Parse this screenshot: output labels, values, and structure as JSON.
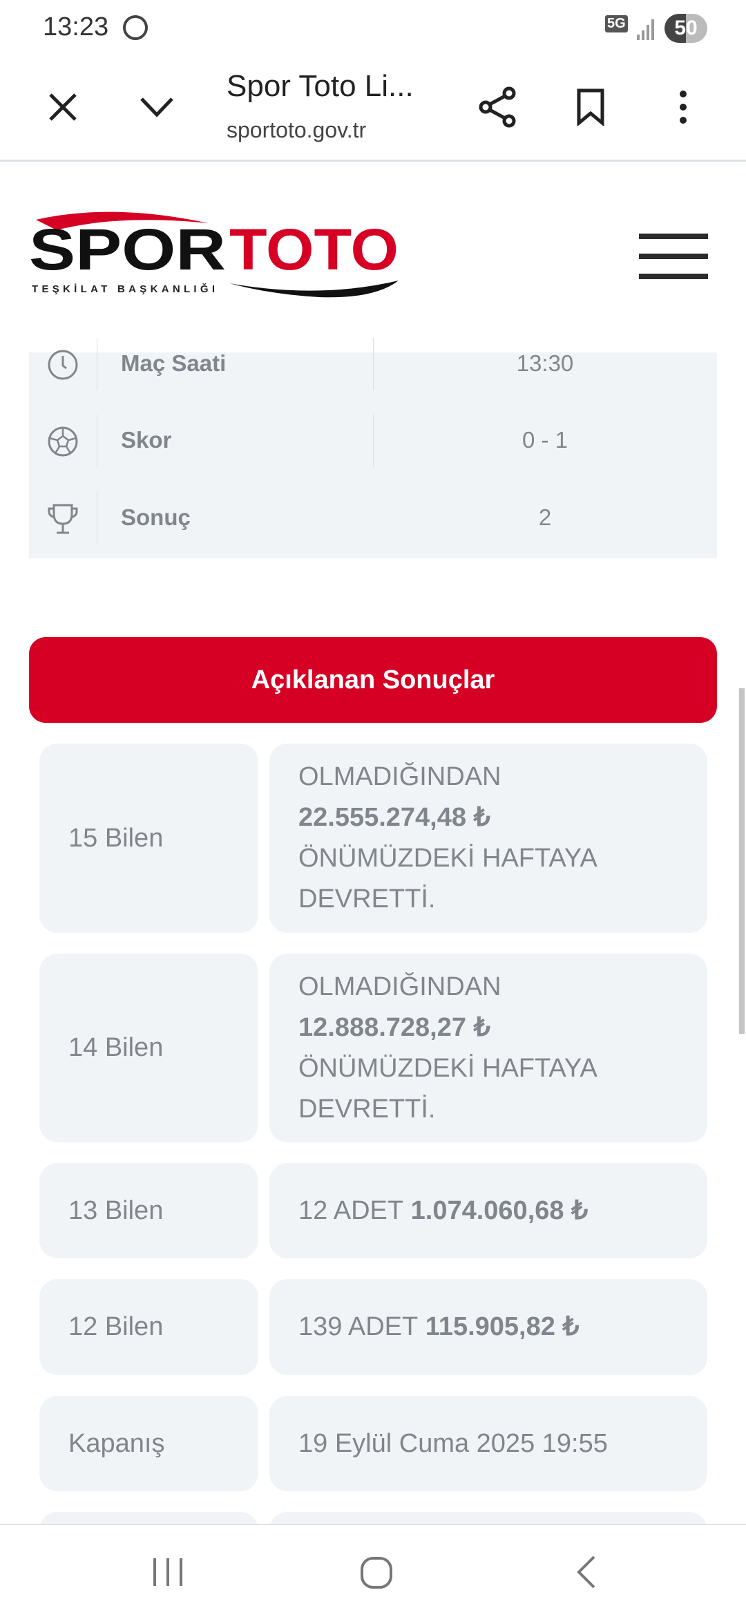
{
  "status_bar": {
    "time": "13:23",
    "network": "5G",
    "battery": "50",
    "icons": [
      "whatsapp-icon",
      "signal-icon",
      "battery-icon"
    ]
  },
  "browser": {
    "title": "Spor Toto Li...",
    "url": "sportoto.gov.tr",
    "icons": [
      "close-icon",
      "chevron-down-icon",
      "share-icon",
      "bookmark-icon",
      "more-vert-icon"
    ]
  },
  "logo": {
    "text_black": "SPOR",
    "text_red": "TOTO",
    "subtitle": "TEŞKİLAT BAŞKANLIĞI"
  },
  "match_info": [
    {
      "icon": "clock-icon",
      "label": "Maç Saati",
      "value": "13:30"
    },
    {
      "icon": "soccer-ball-icon",
      "label": "Skor",
      "value": "0 - 1"
    },
    {
      "icon": "trophy-icon",
      "label": "Sonuç",
      "value": "2"
    }
  ],
  "results_button": "Açıklanan Sonuçlar",
  "results": [
    {
      "label": "15 Bilen",
      "pre": "OLMADIĞINDAN",
      "amount": "22.555.274,48 ₺",
      "post": "ÖNÜMÜZDEKİ HAFTAYA DEVRETTİ."
    },
    {
      "label": "14 Bilen",
      "pre": "OLMADIĞINDAN",
      "amount": "12.888.728,27 ₺",
      "post": "ÖNÜMÜZDEKİ HAFTAYA DEVRETTİ."
    },
    {
      "label": "13 Bilen",
      "pre": "12 ADET",
      "amount": "1.074.060,68 ₺"
    },
    {
      "label": "12 Bilen",
      "pre": "139 ADET",
      "amount": "115.905,82 ₺"
    },
    {
      "label": "Kapanış",
      "value": "19 Eylül Cuma 2025 19:55"
    }
  ],
  "colors": {
    "accent": "#d50023",
    "card_bg": "#f1f4f7",
    "text": "#80868b"
  }
}
